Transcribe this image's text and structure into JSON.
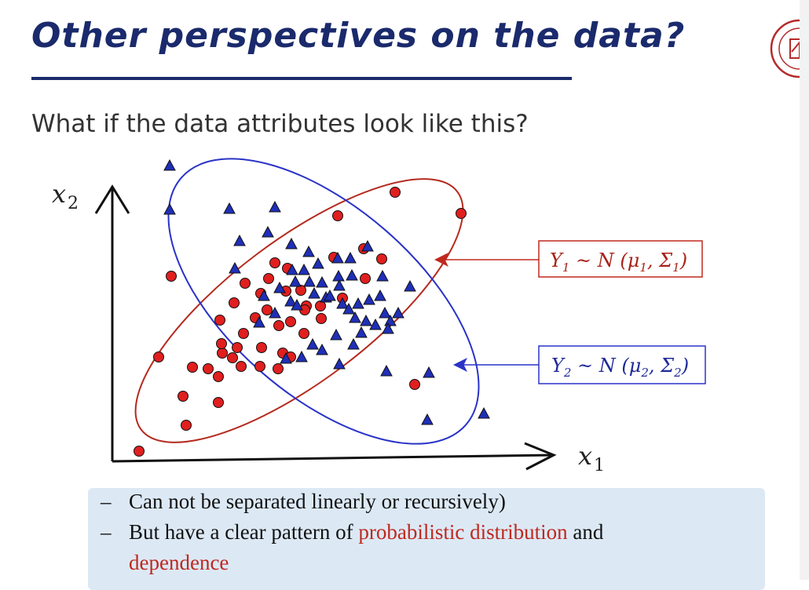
{
  "title": "Other perspectives on the data?",
  "subtitle": "What if the data attributes look like this?",
  "axes": {
    "x_label_base": "x",
    "x_label_sub": "1",
    "y_label_base": "x",
    "y_label_sub": "2"
  },
  "legend": {
    "class1": {
      "Y": "Y",
      "sub": "1",
      "tilde": " ~ ",
      "N": "N",
      "params": "(μ",
      "p1sub": "1",
      "comma": ", Σ",
      "p2sub": "1",
      "close": ")"
    },
    "class2": {
      "Y": "Y",
      "sub": "2",
      "tilde": " ~ ",
      "N": "N",
      "params": "(μ",
      "p1sub": "2",
      "comma": ", Σ",
      "p2sub": "2",
      "close": ")"
    }
  },
  "bullets": {
    "dash": "–",
    "b1": "Can not be separated linearly or recursively)",
    "b2_pre": "But have a clear pattern of ",
    "b2_red": "probabilistic distribution",
    "b2_post": " and",
    "b3_red": "dependence"
  },
  "colors": {
    "red_class": "#e01f1f",
    "blue_class": "#1f2fb8",
    "red_ellipse": "#b52a1e",
    "blue_ellipse": "#2a33c8",
    "title": "#1a2a6c"
  },
  "chart_data": {
    "type": "scatter",
    "series": [
      {
        "marker": "circle",
        "color": "#e01f1f",
        "points": [
          [
            218,
            352
          ],
          [
            177,
            575
          ],
          [
            237,
            542
          ],
          [
            233,
            505
          ],
          [
            278,
            513
          ],
          [
            202,
            455
          ],
          [
            245,
            468
          ],
          [
            265,
            470
          ],
          [
            283,
            450
          ],
          [
            282,
            438
          ],
          [
            302,
            443
          ],
          [
            296,
            456
          ],
          [
            278,
            480
          ],
          [
            307,
            467
          ],
          [
            331,
            467
          ],
          [
            333,
            443
          ],
          [
            310,
            425
          ],
          [
            280,
            408
          ],
          [
            298,
            386
          ],
          [
            312,
            361
          ],
          [
            332,
            374
          ],
          [
            342,
            355
          ],
          [
            350,
            335
          ],
          [
            366,
            342
          ],
          [
            364,
            371
          ],
          [
            383,
            370
          ],
          [
            390,
            390
          ],
          [
            408,
            390
          ],
          [
            409,
            406
          ],
          [
            387,
            425
          ],
          [
            370,
            410
          ],
          [
            355,
            415
          ],
          [
            340,
            395
          ],
          [
            325,
            405
          ],
          [
            360,
            450
          ],
          [
            354,
            470
          ],
          [
            370,
            455
          ],
          [
            388,
            395
          ],
          [
            425,
            328
          ],
          [
            463,
            317
          ],
          [
            486,
            330
          ],
          [
            465,
            355
          ],
          [
            436,
            380
          ],
          [
            430,
            275
          ],
          [
            503,
            245
          ],
          [
            587,
            272
          ],
          [
            528,
            490
          ]
        ]
      },
      {
        "marker": "triangle",
        "color": "#1f2fb8",
        "points": [
          [
            216,
            212
          ],
          [
            216,
            268
          ],
          [
            292,
            267
          ],
          [
            350,
            265
          ],
          [
            305,
            308
          ],
          [
            341,
            297
          ],
          [
            371,
            312
          ],
          [
            299,
            343
          ],
          [
            372,
            345
          ],
          [
            393,
            322
          ],
          [
            387,
            345
          ],
          [
            405,
            337
          ],
          [
            430,
            330
          ],
          [
            446,
            330
          ],
          [
            468,
            315
          ],
          [
            448,
            352
          ],
          [
            431,
            353
          ],
          [
            410,
            361
          ],
          [
            394,
            360
          ],
          [
            376,
            360
          ],
          [
            356,
            368
          ],
          [
            336,
            378
          ],
          [
            330,
            412
          ],
          [
            350,
            400
          ],
          [
            370,
            385
          ],
          [
            378,
            390
          ],
          [
            400,
            375
          ],
          [
            415,
            380
          ],
          [
            432,
            365
          ],
          [
            420,
            378
          ],
          [
            436,
            388
          ],
          [
            444,
            395
          ],
          [
            456,
            388
          ],
          [
            470,
            383
          ],
          [
            484,
            378
          ],
          [
            452,
            406
          ],
          [
            466,
            410
          ],
          [
            478,
            415
          ],
          [
            490,
            400
          ],
          [
            497,
            410
          ],
          [
            507,
            400
          ],
          [
            494,
            420
          ],
          [
            460,
            425
          ],
          [
            450,
            440
          ],
          [
            428,
            428
          ],
          [
            410,
            447
          ],
          [
            398,
            440
          ],
          [
            384,
            456
          ],
          [
            364,
            458
          ],
          [
            432,
            465
          ],
          [
            492,
            474
          ],
          [
            546,
            476
          ],
          [
            544,
            536
          ],
          [
            616,
            528
          ],
          [
            522,
            366
          ],
          [
            487,
            353
          ]
        ]
      }
    ]
  }
}
